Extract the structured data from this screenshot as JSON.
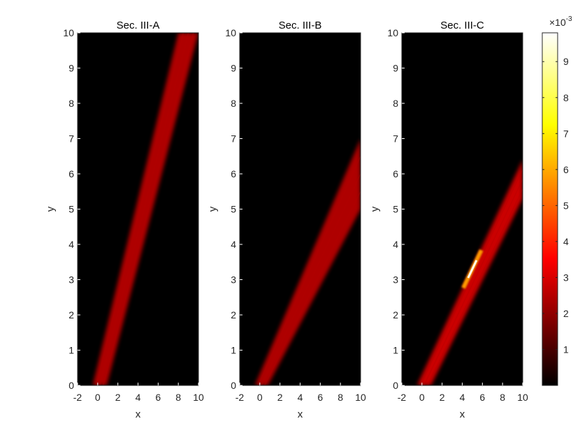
{
  "chart_data": [
    {
      "type": "heatmap",
      "title": "Sec. III-A",
      "xlabel": "x",
      "ylabel": "y",
      "xlim": [
        -2,
        10
      ],
      "ylim": [
        0,
        10
      ],
      "xticks": [
        "-2",
        "0",
        "2",
        "4",
        "6",
        "8",
        "10"
      ],
      "yticks": [
        "0",
        "1",
        "2",
        "3",
        "4",
        "5",
        "6",
        "7",
        "8",
        "9",
        "10"
      ],
      "beams": [
        {
          "x0": -0.5,
          "x1": 8.0,
          "y1": 10,
          "intensity": 0.26
        },
        {
          "x0": 0.9,
          "x1": 10.0,
          "y1": 10,
          "intensity": 0.26
        }
      ]
    },
    {
      "type": "heatmap",
      "title": "Sec. III-B",
      "xlabel": "x",
      "ylabel": "y",
      "xlim": [
        -2,
        10
      ],
      "ylim": [
        0,
        10
      ],
      "xticks": [
        "-2",
        "0",
        "2",
        "4",
        "6",
        "8",
        "10"
      ],
      "yticks": [
        "0",
        "1",
        "2",
        "3",
        "4",
        "5",
        "6",
        "7",
        "8",
        "9",
        "10"
      ],
      "beams": [
        {
          "x0": -0.5,
          "x1": 10.0,
          "y1": 7.0,
          "intensity": 0.26
        },
        {
          "x0": 0.8,
          "x1": 10.0,
          "y1": 5.0,
          "intensity": 0.26
        }
      ]
    },
    {
      "type": "heatmap",
      "title": "Sec. III-C",
      "xlabel": "x",
      "ylabel": "y",
      "xlim": [
        -2,
        10
      ],
      "ylim": [
        0,
        10
      ],
      "xticks": [
        "-2",
        "0",
        "2",
        "4",
        "6",
        "8",
        "10"
      ],
      "yticks": [
        "0",
        "1",
        "2",
        "3",
        "4",
        "5",
        "6",
        "7",
        "8",
        "9",
        "10"
      ],
      "beams": [
        {
          "x0": -0.5,
          "x1": 10.0,
          "y1": 6.4,
          "intensity": 0.3
        },
        {
          "x0": 0.9,
          "x1": 10.0,
          "y1": 5.3,
          "intensity": 0.3
        }
      ],
      "focus": {
        "x": 5.0,
        "y": 3.3,
        "intensity": 0.98
      }
    }
  ],
  "colorbar": {
    "colormap": "hot",
    "range": [
      0,
      0.0098
    ],
    "ticks": [
      "1",
      "2",
      "3",
      "4",
      "5",
      "6",
      "7",
      "8",
      "9"
    ],
    "exponent_base": "×10",
    "exponent_power": "-3"
  },
  "colors": {
    "background": "#000000",
    "axis_text": "#262626"
  }
}
